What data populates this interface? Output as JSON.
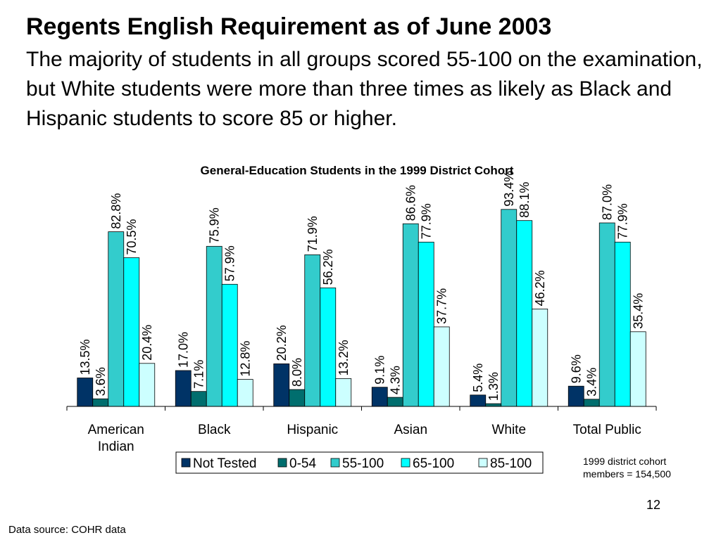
{
  "slide": {
    "title": "Regents English Requirement as of June 2003",
    "subtitle": "The majority of students in all groups scored 55-100 on the examination, but White students were more than three times as likely as Black and Hispanic students to score 85 or higher.",
    "footnote_line1": "1999 district cohort",
    "footnote_line2": "members = 154,500",
    "page_number": "12",
    "data_source": "Data source: COHR data"
  },
  "chart_data": {
    "type": "bar",
    "title": "General-Education Students in the 1999 District Cohort",
    "xlabel": "",
    "ylabel": "",
    "ylim": [
      0,
      100
    ],
    "grid": false,
    "legend_position": "bottom",
    "categories": [
      [
        "American",
        "Indian"
      ],
      [
        "Black"
      ],
      [
        "Hispanic"
      ],
      [
        "Asian"
      ],
      [
        "White"
      ],
      [
        "Total Public"
      ]
    ],
    "series": [
      {
        "name": "Not Tested",
        "color": "#003366",
        "values": [
          13.5,
          17.0,
          20.2,
          9.1,
          5.4,
          9.6
        ],
        "labels": [
          "13.5%",
          "17.0%",
          "20.2%",
          "9.1%",
          "5.4%",
          "9.6%"
        ]
      },
      {
        "name": "0-54",
        "color": "#006E6E",
        "values": [
          3.6,
          7.1,
          8.0,
          4.3,
          1.3,
          3.4
        ],
        "labels": [
          "3.6%",
          "7.1%",
          "8.0%",
          "4.3%",
          "1.3%",
          "3.4%"
        ]
      },
      {
        "name": "55-100",
        "color": "#33CCCC",
        "values": [
          82.8,
          75.9,
          71.9,
          86.6,
          93.4,
          87.0
        ],
        "labels": [
          "82.8%",
          "75.9%",
          "71.9%",
          "86.6%",
          "93.4%",
          "87.0%"
        ]
      },
      {
        "name": "65-100",
        "color": "#00FFFF",
        "values": [
          70.5,
          57.9,
          56.2,
          77.9,
          88.1,
          77.9
        ],
        "labels": [
          "70.5%",
          "57.9%",
          "56.2%",
          "77.9%",
          "88.1%",
          "77.9%"
        ]
      },
      {
        "name": "85-100",
        "color": "#CCFFFF",
        "values": [
          20.4,
          12.8,
          13.2,
          37.7,
          46.2,
          35.4
        ],
        "labels": [
          "20.4%",
          "12.8%",
          "13.2%",
          "37.7%",
          "46.2%",
          "35.4%"
        ]
      }
    ]
  }
}
